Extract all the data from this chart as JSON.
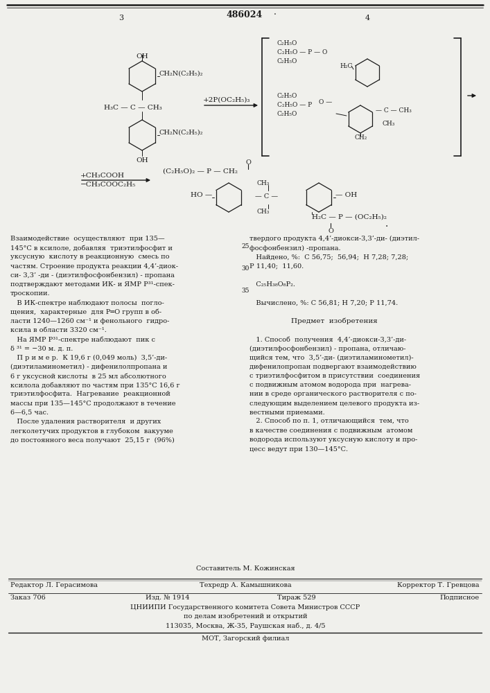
{
  "patent_number": "486024",
  "page_left": "3",
  "page_right": "4",
  "background_color": "#f0f0ec",
  "text_color": "#1a1a1a",
  "line_color": "#1a1a1a",
  "body_text_left": [
    "Взаимодействие  осуществляют  при 135—",
    "145°С в ксилоле, добавляя  триэтилфосфит и",
    "уксусную  кислоту в реакционную  смесь по",
    "частям. Строение продукта реакции 4,4’-диок-",
    "си- 3,3’ -ди - (диэтилфосфонбензил) - пропана",
    "подтверждают методами ИК- и ЯМР P³¹-спек-",
    "троскопии.",
    "   В ИК-спектре наблюдают полосы  погло-",
    "щения,  характерные  для P═O групп в об-",
    "ласти 1240—1260 см⁻¹ и фенольного  гидро-",
    "ксила в области 3320 см⁻¹.",
    "   На ЯМР P³¹-спектре наблюдают  пик с",
    "δ ³¹ = −30 м. д. п.",
    "   П р и м е р.  К 19,6 г (0,049 моль)  3,5’-ди-",
    "(диэтиламинометил) - дифенилолпропана и",
    "6 г уксусной кислоты  в 25 мл абсолютного",
    "ксилола добавляют по частям при 135°С 16,6 г",
    "триэтилфосфита.  Нагревание  реакционной",
    "массы при 135—145°С продолжают в течение",
    "6—6,5 час.",
    "   После удаления растворителя  и других",
    "легколетучих продуктов в глубоком  вакууме",
    "до постоянного веса получают  25,15 г  (96%)"
  ],
  "body_text_right": [
    "твердого продукта 4,4’-диокси-3,3’-ди- (диэтил-",
    "фосфонбензил) -пропана.",
    "   Найдено, %:  С 56,75;  56,94;  H 7,28; 7,28;",
    "P 11,40;  11,60.",
    "",
    "   C₂₅H₃₈O₈P₂.",
    "",
    "   Вычислено, %: С 56,81; H 7,20; P 11,74.",
    "",
    "Предмет  изобретения",
    "",
    "   1. Способ  получения  4,4’-диокси-3,3’-ди-",
    "(диэтилфосфонбензил) - пропана, отличаю-",
    "щийся тем, что  3,5’-ди- (диэтиламинометил)-",
    "дифенилопропан подвергают взаимодействию",
    "с триэтилфосфитом в присутствии  соединения",
    "с подвижным атомом водорода при  нагрева-",
    "нии в среде органического растворителя с по-",
    "следующим выделением целевого продукта из-",
    "вестными приемами.",
    "   2. Способ по п. 1, отличающийся  тем, что",
    "в качестве соединения с подвижным  атомом",
    "водорода используют уксусную кислоту и про-",
    "цесс ведут при 130—145°С."
  ],
  "footer_composer": "Составитель М. Кожинская",
  "footer_editor": "Редактор Л. Герасимова",
  "footer_techeditor": "Техредр А. Камышникова",
  "footer_corrector": "Корректор Т. Гревцова",
  "footer_order": "Заказ 706",
  "footer_pub": "Изд. № 1914",
  "footer_print": "Тираж 529",
  "footer_signed": "Подписное",
  "footer_org": "ЦНИИПИ Государственного комитета Совета Министров СССР",
  "footer_org2": "по делам изобретений и открытий",
  "footer_addr": "113035, Москва, Ж-35, Раушская наб., д. 4/5",
  "footer_plant": "МОТ, Загорский филиал"
}
